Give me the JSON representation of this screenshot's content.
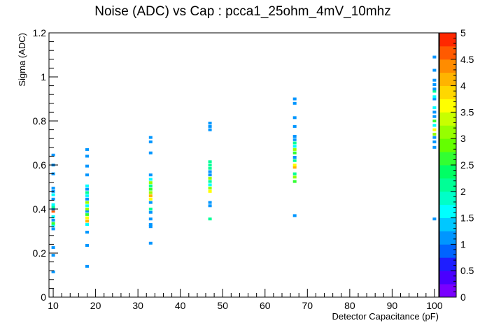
{
  "chart_data": {
    "type": "heatmap",
    "title": "Noise (ADC) vs Cap : pcca1_25ohm_4mV_10mhz",
    "xlabel": "Detector Capacitance (pF)",
    "ylabel": "Sigma (ADC)",
    "xlim": [
      9,
      101
    ],
    "ylim": [
      0,
      1.2
    ],
    "zlim": [
      0,
      5
    ],
    "x_ticks": [
      10,
      20,
      30,
      40,
      50,
      60,
      70,
      80,
      90,
      100
    ],
    "x_tick_labels": [
      "10",
      "20",
      "30",
      "40",
      "50",
      "60",
      "70",
      "80",
      "90",
      "100"
    ],
    "y_ticks": [
      0,
      0.2,
      0.4,
      0.6,
      0.8,
      1.0,
      1.2
    ],
    "y_tick_labels": [
      "0",
      "0.2",
      "0.4",
      "0.6",
      "0.8",
      "1",
      "1.2"
    ],
    "z_ticks": [
      0,
      0.5,
      1,
      1.5,
      2,
      2.5,
      3,
      3.5,
      4,
      4.5,
      5
    ],
    "z_tick_labels": [
      "0",
      "0.5",
      "1",
      "1.5",
      "2",
      "2.5",
      "3",
      "3.5",
      "4",
      "4.5",
      "5"
    ],
    "palette": [
      "#7a00ff",
      "#4a00ff",
      "#1e1eff",
      "#0064ff",
      "#0096ff",
      "#00c8ff",
      "#00ffff",
      "#00ffc8",
      "#00ff96",
      "#00ff64",
      "#32ff32",
      "#64ff00",
      "#96ff00",
      "#c8ff00",
      "#ffff00",
      "#ffd700",
      "#ffb400",
      "#ff8c00",
      "#ff5a00",
      "#ff2800"
    ],
    "grid": false,
    "legend": "color-bar-right",
    "series": [
      {
        "x": 10,
        "points": [
          [
            0.115,
            1
          ],
          [
            0.19,
            1
          ],
          [
            0.225,
            1
          ],
          [
            0.31,
            1
          ],
          [
            0.325,
            1.5
          ],
          [
            0.335,
            2.5
          ],
          [
            0.35,
            1
          ],
          [
            0.365,
            1.5
          ],
          [
            0.39,
            4.5
          ],
          [
            0.4,
            1
          ],
          [
            0.41,
            2
          ],
          [
            0.42,
            1.5
          ],
          [
            0.445,
            1
          ],
          [
            0.465,
            1.5
          ],
          [
            0.48,
            1
          ],
          [
            0.495,
            1
          ],
          [
            0.56,
            1
          ],
          [
            0.6,
            1
          ],
          [
            0.645,
            1
          ]
        ]
      },
      {
        "x": 18,
        "points": [
          [
            0.14,
            1
          ],
          [
            0.235,
            1
          ],
          [
            0.295,
            1
          ],
          [
            0.33,
            1.5
          ],
          [
            0.345,
            4
          ],
          [
            0.36,
            3.5
          ],
          [
            0.375,
            2.5
          ],
          [
            0.39,
            1
          ],
          [
            0.4,
            3
          ],
          [
            0.415,
            1.5
          ],
          [
            0.43,
            3
          ],
          [
            0.445,
            1
          ],
          [
            0.46,
            1.5
          ],
          [
            0.475,
            2
          ],
          [
            0.49,
            1
          ],
          [
            0.505,
            1.5
          ],
          [
            0.555,
            1
          ],
          [
            0.595,
            1
          ],
          [
            0.64,
            1
          ],
          [
            0.67,
            1
          ]
        ]
      },
      {
        "x": 33,
        "points": [
          [
            0.245,
            1
          ],
          [
            0.32,
            1
          ],
          [
            0.33,
            1
          ],
          [
            0.355,
            1
          ],
          [
            0.385,
            1
          ],
          [
            0.4,
            2
          ],
          [
            0.43,
            1
          ],
          [
            0.445,
            3.5
          ],
          [
            0.46,
            4
          ],
          [
            0.475,
            3
          ],
          [
            0.49,
            2.5
          ],
          [
            0.505,
            2
          ],
          [
            0.52,
            3
          ],
          [
            0.535,
            1.5
          ],
          [
            0.555,
            1
          ],
          [
            0.655,
            1
          ],
          [
            0.705,
            1
          ],
          [
            0.725,
            1
          ]
        ]
      },
      {
        "x": 47,
        "points": [
          [
            0.355,
            2
          ],
          [
            0.415,
            1
          ],
          [
            0.43,
            1
          ],
          [
            0.48,
            3.5
          ],
          [
            0.495,
            3
          ],
          [
            0.51,
            1.5
          ],
          [
            0.525,
            2
          ],
          [
            0.54,
            3
          ],
          [
            0.555,
            1
          ],
          [
            0.57,
            1
          ],
          [
            0.585,
            2
          ],
          [
            0.6,
            2
          ],
          [
            0.615,
            2
          ],
          [
            0.76,
            1
          ],
          [
            0.775,
            1
          ],
          [
            0.79,
            1
          ]
        ]
      },
      {
        "x": 67,
        "points": [
          [
            0.37,
            1
          ],
          [
            0.525,
            2.5
          ],
          [
            0.545,
            3
          ],
          [
            0.56,
            2
          ],
          [
            0.59,
            4
          ],
          [
            0.6,
            3.5
          ],
          [
            0.62,
            2
          ],
          [
            0.635,
            1
          ],
          [
            0.655,
            2.5
          ],
          [
            0.67,
            3
          ],
          [
            0.685,
            1.5
          ],
          [
            0.7,
            2
          ],
          [
            0.715,
            1
          ],
          [
            0.73,
            1
          ],
          [
            0.775,
            1
          ],
          [
            0.815,
            1
          ],
          [
            0.88,
            1
          ],
          [
            0.9,
            1
          ]
        ]
      },
      {
        "x": 100,
        "points": [
          [
            0.355,
            1
          ],
          [
            0.68,
            1
          ],
          [
            0.705,
            1
          ],
          [
            0.725,
            1
          ],
          [
            0.74,
            3
          ],
          [
            0.76,
            3.5
          ],
          [
            0.78,
            1.5
          ],
          [
            0.8,
            2.5
          ],
          [
            0.82,
            1
          ],
          [
            0.84,
            1
          ],
          [
            0.86,
            1.5
          ],
          [
            0.9,
            1
          ],
          [
            0.91,
            1.5
          ],
          [
            0.935,
            2
          ],
          [
            0.945,
            1
          ],
          [
            0.965,
            1
          ],
          [
            0.985,
            1
          ],
          [
            1.03,
            1
          ],
          [
            1.09,
            1
          ]
        ]
      }
    ]
  }
}
